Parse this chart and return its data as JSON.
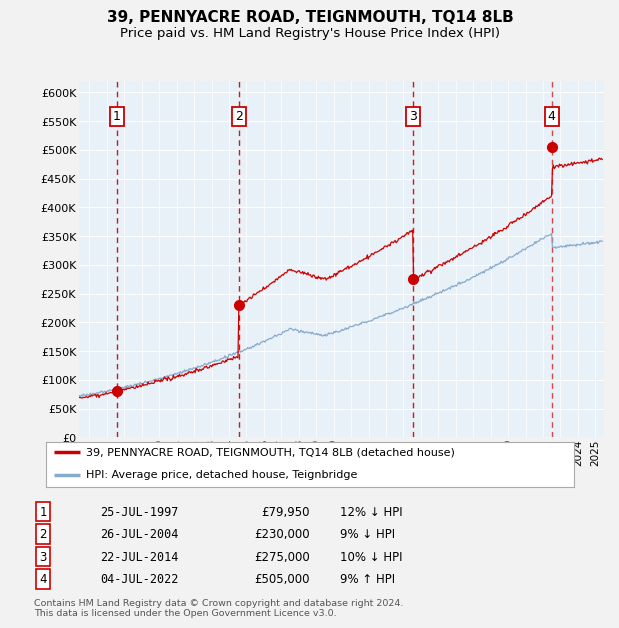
{
  "title": "39, PENNYACRE ROAD, TEIGNMOUTH, TQ14 8LB",
  "subtitle": "Price paid vs. HM Land Registry's House Price Index (HPI)",
  "ylim": [
    0,
    620000
  ],
  "yticks": [
    0,
    50000,
    100000,
    150000,
    200000,
    250000,
    300000,
    350000,
    400000,
    450000,
    500000,
    550000,
    600000
  ],
  "xlim_start": 1995.4,
  "xlim_end": 2025.5,
  "background_color": "#e8f0f8",
  "fig_bg_color": "#f2f2f2",
  "grid_color": "#ffffff",
  "sale_dates": [
    1997.56,
    2004.56,
    2014.56,
    2022.5
  ],
  "sale_prices": [
    79950,
    230000,
    275000,
    505000
  ],
  "sale_labels": [
    "1",
    "2",
    "3",
    "4"
  ],
  "sale_line_color": "#cc0000",
  "hpi_line_color": "#88aacc",
  "legend_entries": [
    "39, PENNYACRE ROAD, TEIGNMOUTH, TQ14 8LB (detached house)",
    "HPI: Average price, detached house, Teignbridge"
  ],
  "table_rows": [
    [
      "1",
      "25-JUL-1997",
      "£79,950",
      "12% ↓ HPI"
    ],
    [
      "2",
      "26-JUL-2004",
      "£230,000",
      "9% ↓ HPI"
    ],
    [
      "3",
      "22-JUL-2014",
      "£275,000",
      "10% ↓ HPI"
    ],
    [
      "4",
      "04-JUL-2022",
      "£505,000",
      "9% ↑ HPI"
    ]
  ],
  "footer": "Contains HM Land Registry data © Crown copyright and database right 2024.\nThis data is licensed under the Open Government Licence v3.0.",
  "title_fontsize": 11,
  "subtitle_fontsize": 9.5
}
